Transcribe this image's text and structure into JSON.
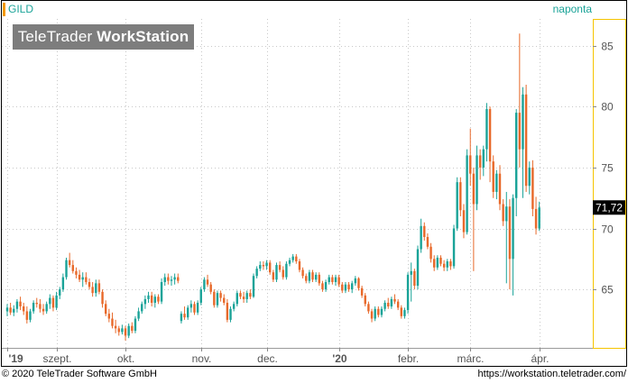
{
  "header": {
    "symbol": "GILD",
    "period": "naponta"
  },
  "watermark": {
    "brand": "TeleTrader",
    "product": "WorkStation"
  },
  "footer": {
    "copyright": "© 2020 TeleTrader Software GmbH",
    "url": "https://workstation.teletrader.com/"
  },
  "colors": {
    "up": "#1aa398",
    "down": "#e8692a",
    "grid": "#c8c8c8",
    "price_badge": "#000000",
    "axis_border": "#f5c400"
  },
  "chart_data": {
    "type": "candlestick",
    "title": "",
    "ylim": [
      60.2,
      87.2
    ],
    "y_ticks": [
      65,
      70,
      75,
      80,
      85
    ],
    "y_tick_labels": [
      "65",
      "70",
      "75",
      "80",
      "85"
    ],
    "x_labels": [
      {
        "index": 0,
        "label": "'19",
        "bold": true
      },
      {
        "index": 15,
        "label": "szept.",
        "bold": false
      },
      {
        "index": 36,
        "label": "okt.",
        "bold": false
      },
      {
        "index": 59,
        "label": "nov.",
        "bold": false
      },
      {
        "index": 79,
        "label": "dec.",
        "bold": false
      },
      {
        "index": 101,
        "label": "'20",
        "bold": true
      },
      {
        "index": 122,
        "label": "febr.",
        "bold": false
      },
      {
        "index": 141,
        "label": "márc.",
        "bold": false
      },
      {
        "index": 162,
        "label": "ápr.",
        "bold": false
      }
    ],
    "last_price_label": "71,72",
    "last_price": 71.72,
    "candles": [
      [
        63.2,
        63.8,
        62.8,
        63.5
      ],
      [
        63.5,
        63.9,
        62.9,
        63.1
      ],
      [
        63.1,
        63.7,
        62.8,
        63.4
      ],
      [
        63.4,
        64.2,
        63.1,
        64.0
      ],
      [
        64.0,
        64.4,
        63.3,
        63.6
      ],
      [
        63.6,
        63.9,
        62.9,
        63.2
      ],
      [
        63.2,
        63.6,
        62.2,
        62.5
      ],
      [
        62.5,
        63.4,
        62.3,
        63.2
      ],
      [
        63.2,
        64.1,
        63.0,
        63.9
      ],
      [
        63.9,
        64.3,
        63.5,
        63.8
      ],
      [
        63.8,
        64.2,
        63.1,
        63.4
      ],
      [
        63.4,
        63.8,
        62.9,
        63.2
      ],
      [
        63.2,
        64.0,
        63.0,
        63.8
      ],
      [
        63.8,
        64.6,
        63.4,
        64.3
      ],
      [
        64.3,
        64.5,
        63.2,
        63.5
      ],
      [
        63.5,
        64.8,
        63.3,
        64.5
      ],
      [
        64.5,
        65.2,
        64.2,
        65.0
      ],
      [
        65.0,
        66.3,
        64.8,
        66.0
      ],
      [
        66.0,
        67.6,
        65.8,
        67.4
      ],
      [
        67.4,
        68.0,
        66.8,
        67.0
      ],
      [
        67.0,
        67.4,
        66.3,
        66.5
      ],
      [
        66.5,
        66.8,
        65.9,
        66.2
      ],
      [
        66.2,
        66.6,
        65.6,
        65.8
      ],
      [
        65.8,
        66.4,
        65.2,
        66.0
      ],
      [
        66.0,
        66.4,
        65.4,
        65.6
      ],
      [
        65.6,
        65.9,
        65.0,
        65.2
      ],
      [
        65.2,
        65.6,
        64.4,
        64.7
      ],
      [
        64.7,
        65.8,
        64.4,
        65.5
      ],
      [
        65.5,
        65.8,
        64.6,
        64.8
      ],
      [
        64.8,
        65.0,
        63.5,
        63.8
      ],
      [
        63.8,
        64.1,
        62.8,
        63.0
      ],
      [
        63.0,
        63.4,
        62.3,
        62.6
      ],
      [
        62.6,
        63.1,
        61.8,
        62.0
      ],
      [
        62.0,
        62.5,
        61.4,
        61.8
      ],
      [
        61.8,
        62.0,
        61.2,
        61.5
      ],
      [
        61.5,
        62.1,
        61.3,
        61.8
      ],
      [
        61.8,
        62.0,
        60.8,
        61.2
      ],
      [
        61.2,
        62.2,
        61.0,
        62.0
      ],
      [
        62.0,
        62.3,
        61.4,
        61.6
      ],
      [
        61.6,
        62.8,
        61.4,
        62.6
      ],
      [
        62.6,
        63.5,
        62.4,
        63.2
      ],
      [
        63.2,
        64.0,
        63.0,
        63.8
      ],
      [
        63.8,
        64.5,
        63.4,
        64.2
      ],
      [
        64.2,
        64.8,
        63.9,
        64.5
      ],
      [
        64.5,
        64.8,
        63.6,
        63.9
      ],
      [
        63.9,
        64.6,
        63.5,
        64.4
      ],
      [
        64.4,
        64.6,
        63.8,
        64.0
      ],
      [
        64.0,
        65.9,
        63.8,
        65.6
      ],
      [
        65.6,
        66.3,
        65.3,
        66.0
      ],
      [
        66.0,
        66.3,
        65.4,
        65.7
      ],
      [
        65.7,
        66.1,
        65.3,
        65.8
      ],
      [
        65.8,
        66.3,
        65.4,
        66.0
      ],
      [
        66.0,
        66.3,
        65.5,
        65.7
      ],
      [
        62.4,
        63.2,
        62.2,
        63.0
      ],
      [
        63.0,
        63.6,
        62.5,
        62.7
      ],
      [
        62.7,
        63.7,
        62.5,
        63.5
      ],
      [
        63.5,
        64.1,
        63.1,
        63.8
      ],
      [
        63.8,
        64.0,
        62.9,
        63.1
      ],
      [
        63.1,
        64.1,
        62.9,
        63.9
      ],
      [
        63.9,
        65.2,
        63.7,
        65.0
      ],
      [
        65.0,
        66.0,
        64.8,
        65.8
      ],
      [
        65.8,
        66.2,
        65.2,
        65.4
      ],
      [
        65.4,
        65.6,
        64.6,
        64.8
      ],
      [
        64.8,
        65.0,
        63.5,
        63.7
      ],
      [
        63.7,
        64.9,
        63.5,
        64.7
      ],
      [
        64.7,
        64.9,
        64.0,
        64.3
      ],
      [
        64.3,
        64.6,
        63.7,
        63.9
      ],
      [
        63.9,
        64.2,
        62.3,
        62.5
      ],
      [
        62.5,
        63.6,
        62.3,
        63.4
      ],
      [
        63.4,
        64.0,
        63.2,
        63.8
      ],
      [
        63.8,
        64.9,
        63.6,
        64.7
      ],
      [
        64.7,
        64.9,
        64.2,
        64.4
      ],
      [
        64.4,
        64.8,
        63.9,
        64.2
      ],
      [
        64.2,
        64.9,
        63.9,
        64.7
      ],
      [
        64.7,
        65.0,
        64.2,
        64.4
      ],
      [
        64.4,
        66.3,
        64.3,
        66.1
      ],
      [
        66.1,
        66.9,
        65.9,
        66.7
      ],
      [
        66.7,
        67.3,
        66.5,
        67.0
      ],
      [
        67.0,
        67.3,
        66.6,
        66.9
      ],
      [
        66.9,
        67.4,
        66.6,
        67.2
      ],
      [
        67.2,
        67.4,
        66.2,
        66.4
      ],
      [
        66.4,
        66.6,
        65.6,
        65.8
      ],
      [
        65.8,
        67.2,
        65.6,
        67.0
      ],
      [
        67.0,
        67.3,
        66.4,
        66.6
      ],
      [
        66.6,
        66.9,
        65.8,
        66.0
      ],
      [
        66.0,
        67.3,
        65.8,
        67.1
      ],
      [
        67.1,
        67.6,
        66.9,
        67.4
      ],
      [
        67.4,
        67.9,
        67.2,
        67.7
      ],
      [
        67.7,
        67.9,
        67.1,
        67.3
      ],
      [
        67.3,
        67.5,
        66.4,
        66.6
      ],
      [
        66.6,
        66.8,
        65.9,
        66.1
      ],
      [
        66.1,
        66.3,
        65.5,
        65.7
      ],
      [
        65.7,
        66.6,
        65.5,
        66.4
      ],
      [
        66.4,
        66.6,
        65.6,
        65.8
      ],
      [
        65.8,
        66.4,
        65.6,
        66.2
      ],
      [
        66.2,
        66.4,
        65.3,
        65.5
      ],
      [
        65.5,
        65.7,
        64.8,
        65.0
      ],
      [
        65.0,
        65.8,
        64.8,
        65.6
      ],
      [
        65.6,
        66.2,
        65.4,
        66.0
      ],
      [
        66.0,
        66.2,
        65.4,
        65.6
      ],
      [
        65.6,
        66.2,
        65.3,
        66.0
      ],
      [
        66.0,
        66.2,
        65.2,
        65.4
      ],
      [
        65.4,
        65.6,
        64.7,
        64.9
      ],
      [
        64.9,
        65.6,
        64.7,
        65.4
      ],
      [
        65.4,
        65.6,
        64.8,
        65.0
      ],
      [
        65.0,
        65.7,
        64.7,
        65.5
      ],
      [
        65.5,
        66.1,
        65.3,
        65.9
      ],
      [
        65.9,
        66.0,
        64.9,
        65.1
      ],
      [
        65.1,
        65.3,
        64.3,
        64.5
      ],
      [
        64.5,
        64.7,
        63.6,
        63.8
      ],
      [
        63.8,
        64.0,
        63.0,
        63.2
      ],
      [
        63.2,
        63.4,
        62.3,
        62.6
      ],
      [
        62.6,
        63.6,
        62.4,
        63.4
      ],
      [
        63.4,
        63.6,
        62.7,
        62.9
      ],
      [
        62.9,
        63.6,
        62.7,
        63.4
      ],
      [
        63.4,
        64.1,
        63.2,
        63.9
      ],
      [
        63.9,
        64.3,
        63.4,
        63.6
      ],
      [
        63.6,
        64.4,
        63.4,
        64.2
      ],
      [
        64.2,
        64.6,
        63.8,
        64.0
      ],
      [
        64.0,
        64.2,
        63.3,
        63.5
      ],
      [
        63.5,
        63.7,
        62.6,
        62.8
      ],
      [
        62.8,
        63.5,
        62.6,
        63.3
      ],
      [
        63.3,
        66.4,
        63.0,
        66.2
      ],
      [
        66.2,
        67.2,
        64.0,
        66.5
      ],
      [
        66.5,
        66.7,
        65.0,
        65.3
      ],
      [
        65.3,
        68.6,
        65.0,
        68.3
      ],
      [
        68.3,
        70.8,
        68.0,
        70.2
      ],
      [
        70.2,
        70.5,
        69.0,
        69.3
      ],
      [
        69.3,
        69.6,
        68.3,
        68.5
      ],
      [
        68.5,
        68.8,
        67.2,
        67.5
      ],
      [
        67.5,
        67.8,
        66.5,
        66.8
      ],
      [
        66.8,
        67.8,
        66.6,
        67.6
      ],
      [
        67.6,
        67.8,
        66.9,
        67.1
      ],
      [
        67.1,
        67.4,
        66.5,
        66.8
      ],
      [
        66.8,
        67.5,
        66.5,
        67.3
      ],
      [
        67.3,
        67.5,
        66.6,
        66.9
      ],
      [
        66.9,
        70.3,
        66.7,
        70.0
      ],
      [
        70.0,
        74.2,
        69.8,
        73.8
      ],
      [
        73.8,
        74.2,
        71.0,
        71.5
      ],
      [
        71.5,
        72.0,
        69.2,
        69.7
      ],
      [
        69.7,
        76.5,
        69.5,
        76.0
      ],
      [
        76.0,
        78.2,
        73.5,
        74.5
      ],
      [
        74.5,
        75.0,
        66.5,
        72.0
      ],
      [
        72.0,
        76.8,
        71.5,
        76.0
      ],
      [
        76.0,
        76.5,
        74.0,
        75.0
      ],
      [
        75.0,
        76.8,
        74.3,
        76.5
      ],
      [
        76.5,
        80.3,
        75.5,
        79.8
      ],
      [
        79.8,
        80.0,
        73.8,
        75.5
      ],
      [
        75.5,
        76.0,
        72.5,
        73.0
      ],
      [
        73.0,
        74.8,
        72.4,
        74.5
      ],
      [
        74.5,
        75.2,
        71.5,
        72.0
      ],
      [
        72.0,
        72.4,
        70.2,
        70.6
      ],
      [
        70.6,
        73.0,
        65.5,
        71.8
      ],
      [
        71.8,
        72.4,
        65.0,
        67.5
      ],
      [
        67.5,
        72.8,
        64.5,
        72.5
      ],
      [
        72.5,
        79.8,
        71.0,
        79.5
      ],
      [
        79.5,
        86.0,
        75.0,
        76.5
      ],
      [
        76.5,
        81.6,
        72.5,
        81.0
      ],
      [
        81.0,
        81.8,
        73.0,
        73.5
      ],
      [
        73.5,
        75.5,
        72.8,
        75.0
      ],
      [
        75.0,
        75.6,
        71.0,
        71.6
      ],
      [
        71.6,
        72.6,
        69.5,
        70.0
      ],
      [
        70.0,
        72.2,
        69.8,
        71.72
      ]
    ]
  }
}
